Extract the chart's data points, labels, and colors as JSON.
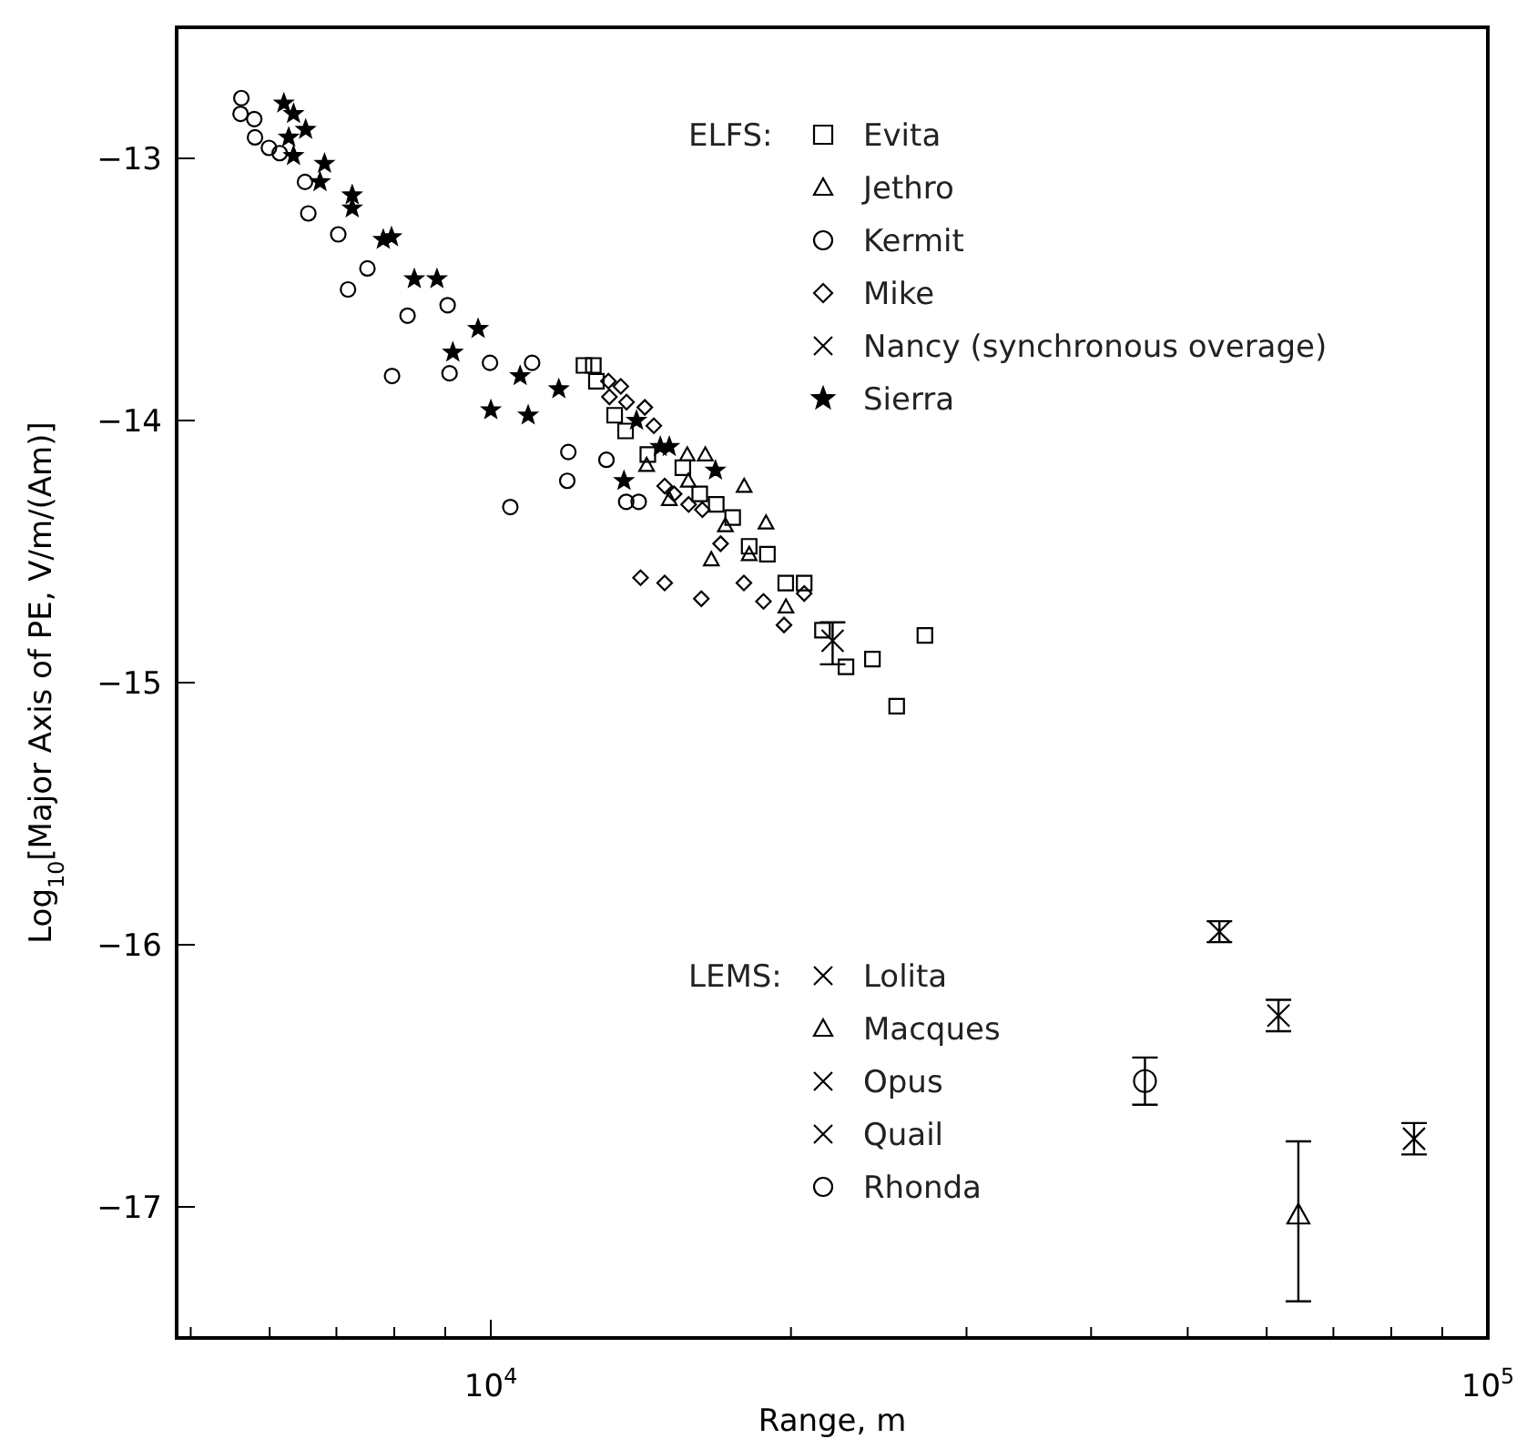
{
  "chart_data": {
    "type": "scatter",
    "xlabel": "Range, m",
    "ylabel": "Log$_{10}$[Major Axis of PE, V/m/(Am)]",
    "log": "x",
    "xlim": [
      4840,
      100000
    ],
    "ylim": [
      -17.5,
      -12.5
    ],
    "xticks": [
      {
        "value": 5000,
        "label": null
      },
      {
        "value": 6000,
        "label": null
      },
      {
        "value": 7000,
        "label": null
      },
      {
        "value": 8000,
        "label": null
      },
      {
        "value": 9000,
        "label": null
      },
      {
        "value": 10000,
        "label": "10$^{4}$"
      },
      {
        "value": 20000,
        "label": null
      },
      {
        "value": 30000,
        "label": null
      },
      {
        "value": 40000,
        "label": null
      },
      {
        "value": 50000,
        "label": null
      },
      {
        "value": 60000,
        "label": null
      },
      {
        "value": 70000,
        "label": null
      },
      {
        "value": 80000,
        "label": null
      },
      {
        "value": 90000,
        "label": null
      },
      {
        "value": 100000,
        "label": "10$^{5}$"
      }
    ],
    "yticks": [
      -13,
      -14,
      -15,
      -16,
      -17
    ],
    "grid": false,
    "legend": "top right",
    "annotations": [
      "ELFS:",
      "LEMS:"
    ],
    "series": [
      {
        "name": "Evita",
        "color": "#000000",
        "marker": "square",
        "x": [
          12400,
          12670,
          12760,
          13310,
          13650,
          14370,
          15580,
          16200,
          16830,
          17480,
          18160,
          18940,
          19760,
          20620,
          21510,
          22710,
          24140,
          25530,
          27250
        ],
        "values": [
          -13.79,
          -13.79,
          -13.85,
          -13.98,
          -14.04,
          -14.13,
          -14.18,
          -14.28,
          -14.32,
          -14.37,
          -14.48,
          -14.51,
          -14.62,
          -14.62,
          -14.8,
          -14.94,
          -14.91,
          -15.09,
          -14.82
        ]
      },
      {
        "name": "Jethro",
        "color": "#000000",
        "marker": "triangle",
        "x": [
          14330,
          15740,
          16410,
          15780,
          15100,
          17950,
          18880,
          17190,
          16640,
          19770,
          18160
        ],
        "values": [
          -14.17,
          -14.13,
          -14.13,
          -14.23,
          -14.3,
          -14.25,
          -14.39,
          -14.4,
          -14.53,
          -14.71,
          -14.51
        ]
      },
      {
        "name": "Kermit",
        "color": "#000000",
        "marker": "circle",
        "x": [
          5620,
          5610,
          5790,
          5800,
          5990,
          6140,
          6510,
          6560,
          7030,
          7190,
          7520,
          8250,
          9050,
          7960,
          9090,
          9980,
          11000,
          10460,
          11960,
          11930,
          13060,
          13670,
          14070
        ],
        "values": [
          -12.77,
          -12.83,
          -12.85,
          -12.92,
          -12.96,
          -12.98,
          -13.09,
          -13.21,
          -13.29,
          -13.5,
          -13.42,
          -13.6,
          -13.56,
          -13.83,
          -13.82,
          -13.78,
          -13.78,
          -14.33,
          -14.12,
          -14.23,
          -14.15,
          -14.31,
          -14.31
        ]
      },
      {
        "name": "Mike",
        "color": "#000000",
        "marker": "diamond",
        "x": [
          13120,
          13500,
          13150,
          13680,
          14270,
          14570,
          14940,
          15270,
          15790,
          16300,
          17000,
          14130,
          14940,
          16260,
          17940,
          18770,
          19680,
          20620
        ],
        "values": [
          -13.85,
          -13.87,
          -13.91,
          -13.93,
          -13.95,
          -14.02,
          -14.25,
          -14.28,
          -14.32,
          -14.34,
          -14.47,
          -14.6,
          -14.62,
          -14.68,
          -14.62,
          -14.69,
          -14.78,
          -14.66
        ]
      },
      {
        "name": "Nancy (synchronous overage)",
        "color": "#000000",
        "marker": "cross",
        "x": [
          22020
        ],
        "values": [
          -14.84
        ],
        "errors": [
          [
            -14.93,
            -14.77
          ]
        ]
      },
      {
        "name": "Sierra",
        "color": "#000000",
        "marker": "star",
        "x": [
          6200,
          6340,
          6520,
          6270,
          6340,
          6810,
          6740,
          7260,
          7260,
          7800,
          7950,
          8380,
          8830,
          9710,
          9160,
          10000,
          10700,
          10900,
          11700,
          13600,
          14000,
          14790,
          15100,
          16800
        ],
        "values": [
          -12.79,
          -12.83,
          -12.89,
          -12.92,
          -12.99,
          -13.02,
          -13.09,
          -13.14,
          -13.19,
          -13.31,
          -13.3,
          -13.46,
          -13.46,
          -13.65,
          -13.74,
          -13.96,
          -13.83,
          -13.98,
          -13.88,
          -14.23,
          -14.0,
          -14.1,
          -14.1,
          -14.19
        ]
      },
      {
        "name": "Lolita",
        "color": "#000000",
        "marker": "cross",
        "x": [
          61660
        ],
        "values": [
          -16.27
        ],
        "errors": [
          [
            -16.33,
            -16.21
          ]
        ]
      },
      {
        "name": "Macques",
        "color": "#000000",
        "marker": "triangle",
        "x": [
          64560
        ],
        "values": [
          -17.03
        ],
        "errors": [
          [
            -17.36,
            -16.75
          ]
        ]
      },
      {
        "name": "Opus",
        "color": "#000000",
        "marker": "cross",
        "x": [
          53800
        ],
        "values": [
          -15.95
        ],
        "errors": [
          [
            -15.99,
            -15.91
          ]
        ]
      },
      {
        "name": "Quail",
        "color": "#000000",
        "marker": "cross",
        "x": [
          84330
        ],
        "values": [
          -16.74
        ],
        "errors": [
          [
            -16.8,
            -16.68
          ]
        ]
      },
      {
        "name": "Rhonda",
        "color": "#000000",
        "marker": "circle",
        "x": [
          45300
        ],
        "values": [
          -16.52
        ],
        "errors": [
          [
            -16.61,
            -16.43
          ]
        ]
      }
    ]
  }
}
